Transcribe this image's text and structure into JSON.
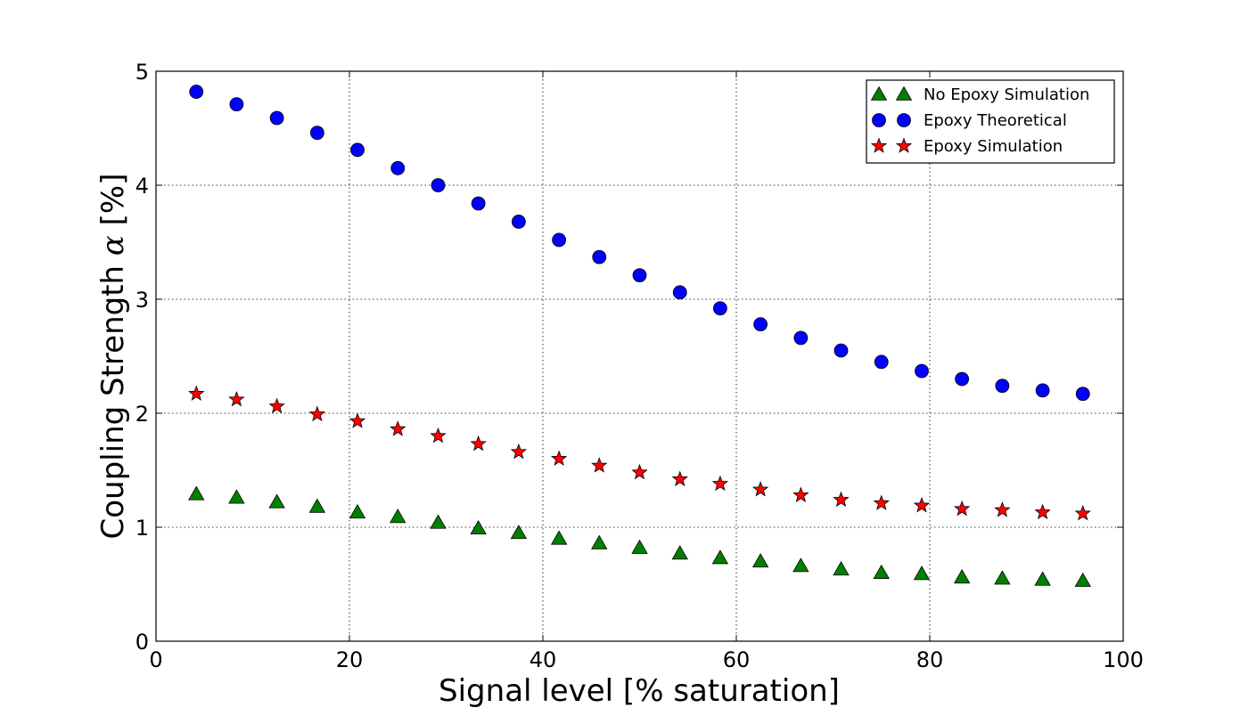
{
  "chart_data": {
    "type": "scatter",
    "title": "",
    "xlabel": "Signal level [% saturation]",
    "ylabel_prefix": "Coupling Strength ",
    "ylabel_symbol": "α",
    "ylabel_suffix": " [%]",
    "xlim": [
      0,
      100
    ],
    "ylim": [
      0,
      5
    ],
    "xticks": [
      0,
      20,
      40,
      60,
      80,
      100
    ],
    "xtick_labels": [
      "0",
      "20",
      "40",
      "60",
      "80",
      "100"
    ],
    "yticks": [
      0,
      1,
      2,
      3,
      4,
      5
    ],
    "ytick_labels": [
      "0",
      "1",
      "2",
      "3",
      "4",
      "5"
    ],
    "grid": true,
    "legend_position": "top-right",
    "x": [
      4.17,
      8.33,
      12.5,
      16.67,
      20.83,
      25.0,
      29.17,
      33.33,
      37.5,
      41.67,
      45.83,
      50.0,
      54.17,
      58.33,
      62.5,
      66.67,
      70.83,
      75.0,
      79.17,
      83.33,
      87.5,
      91.67,
      95.83
    ],
    "series": [
      {
        "name": "No Epoxy Simulation",
        "marker": "triangle",
        "color": "#008000",
        "values": [
          1.29,
          1.26,
          1.22,
          1.18,
          1.13,
          1.09,
          1.04,
          0.99,
          0.95,
          0.9,
          0.86,
          0.82,
          0.77,
          0.73,
          0.7,
          0.66,
          0.63,
          0.6,
          0.59,
          0.56,
          0.55,
          0.54,
          0.53
        ]
      },
      {
        "name": "Epoxy Theoretical",
        "marker": "circle",
        "color": "#0000ff",
        "values": [
          4.82,
          4.71,
          4.59,
          4.46,
          4.31,
          4.15,
          4.0,
          3.84,
          3.68,
          3.52,
          3.37,
          3.21,
          3.06,
          2.92,
          2.78,
          2.66,
          2.55,
          2.45,
          2.37,
          2.3,
          2.24,
          2.2,
          2.17
        ]
      },
      {
        "name": "Epoxy Simulation",
        "marker": "star",
        "color": "#ff0000",
        "values": [
          2.17,
          2.12,
          2.06,
          1.99,
          1.93,
          1.86,
          1.8,
          1.73,
          1.66,
          1.6,
          1.54,
          1.48,
          1.42,
          1.38,
          1.33,
          1.28,
          1.24,
          1.21,
          1.19,
          1.16,
          1.15,
          1.13,
          1.12
        ]
      }
    ]
  }
}
